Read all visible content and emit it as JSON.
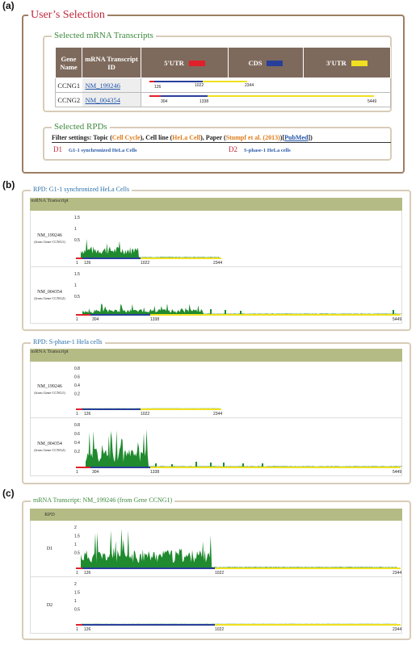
{
  "panel_letters": {
    "a": "(a)",
    "b": "(b)",
    "c": "(c)"
  },
  "users_selection": "User’s Selection",
  "selected_transcripts": {
    "title": "Selected mRNA Transcripts",
    "headers": {
      "gene": "Gene Name",
      "transcript": "mRNA Transcript ID",
      "utr5": "5'UTR",
      "cds": "CDS",
      "utr3": "3'UTR"
    },
    "colors": {
      "utr5": "#e0202a",
      "cds": "#283f9a",
      "utr3": "#f0e020"
    },
    "rows": [
      {
        "gene": "CCNG1",
        "id": "NM_199246",
        "ticks": [
          "126",
          "1022",
          "2344"
        ]
      },
      {
        "gene": "CCNG2",
        "id": "NM_004354",
        "ticks": [
          "304",
          "1338",
          "5449"
        ]
      }
    ]
  },
  "selected_rpds": {
    "title": "Selected RPDs",
    "filter_label": "Filter settings: Topic (",
    "topic": "Cell Cycle",
    "mid1": "), Cell line (",
    "cell_line": "HeLa Cell",
    "mid2": "), Paper (",
    "paper": "Stumpf et al. (2013)",
    "mid3": ")[",
    "pubmed": "PubMed",
    "end": "])",
    "d1_tag": "D1",
    "d1_label": "G1-1 synchronized HeLa Cells",
    "d2_tag": "D2",
    "d2_label": "S-phase-1 HeLa cells"
  },
  "rpd_g1": {
    "title": "RPD: G1-1 synchronized HeLa Cells",
    "header": "mRNA Transcript",
    "rows": [
      {
        "id": "NM_199246",
        "gene": "(from Gene CCNG1)",
        "ticks": [
          "1",
          "126",
          "1022",
          "2344"
        ],
        "y": [
          "1.5",
          "1",
          "0.5"
        ]
      },
      {
        "id": "NM_004354",
        "gene": "(from Gene CCNG2)",
        "ticks": [
          "1",
          "304",
          "1338",
          "5449"
        ],
        "y": [
          "1.5",
          "1",
          "0.5"
        ]
      }
    ]
  },
  "rpd_s": {
    "title": "RPD: S-phase-1 Hela cells",
    "header": "mRNA Transcript",
    "rows": [
      {
        "id": "NM_199246",
        "gene": "(from Gene CCNG1)",
        "ticks": [
          "1",
          "126",
          "1022",
          "2344"
        ],
        "y": [
          "0.8",
          "0.6",
          "0.4",
          "0.2"
        ]
      },
      {
        "id": "NM_004354",
        "gene": "(from Gene CCNG2)",
        "ticks": [
          "1",
          "304",
          "1338",
          "5449"
        ],
        "y": [
          "0.8",
          "0.6",
          "0.4",
          "0.2"
        ]
      }
    ]
  },
  "transcript_panel": {
    "title": "mRNA Transcript: NM_199246 (from Gene CCNG1)",
    "header": "RPD",
    "rows": [
      {
        "id": "D1",
        "ticks": [
          "1",
          "126",
          "1022",
          "2344"
        ],
        "y": [
          "2",
          "1.5",
          "1",
          "0.5"
        ]
      },
      {
        "id": "D2",
        "ticks": [
          "1",
          "126",
          "1022",
          "2344"
        ],
        "y": [
          "2",
          "1.5",
          "1",
          "0.5"
        ]
      }
    ]
  }
}
